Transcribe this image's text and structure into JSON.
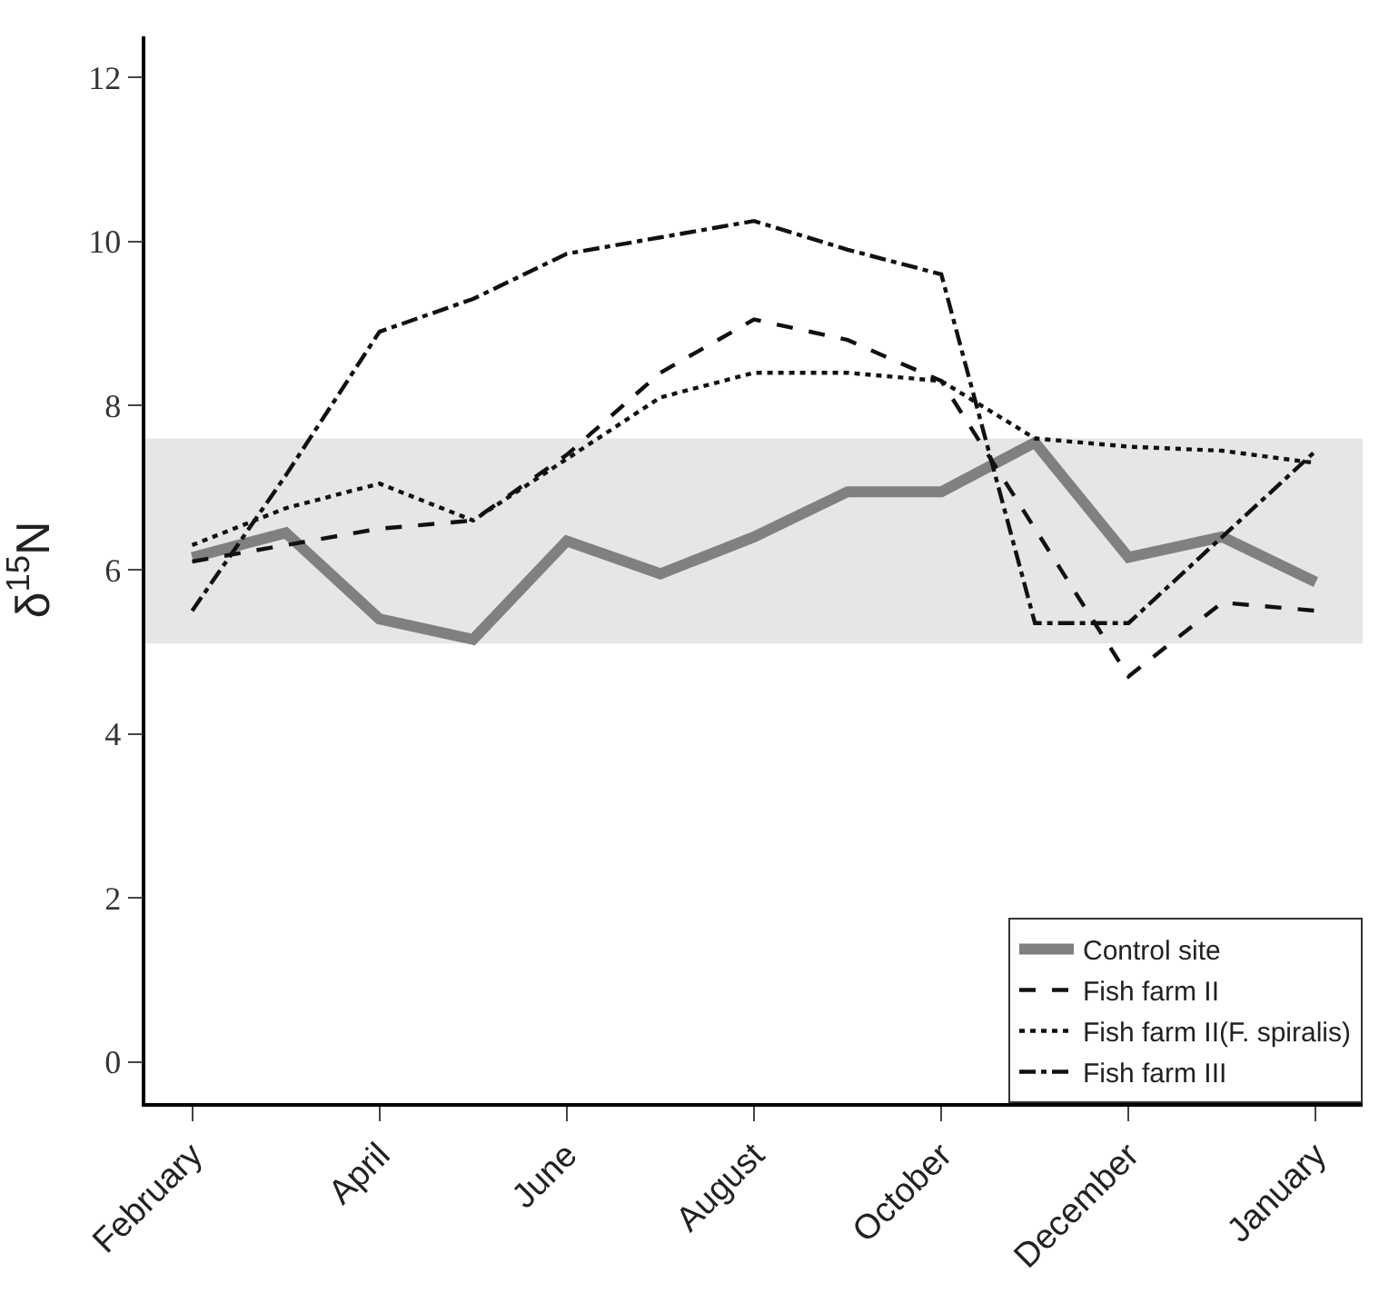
{
  "chart_data": {
    "type": "line",
    "ylabel": "δ$^{15}$N",
    "categories": [
      "February",
      null,
      "April",
      null,
      "June",
      null,
      "August",
      null,
      "October",
      null,
      "December",
      null,
      "January"
    ],
    "series": [
      {
        "name": "Control site",
        "color": "#808080",
        "line_style": "solid",
        "values": [
          6.15,
          6.45,
          5.4,
          5.15,
          6.35,
          5.95,
          6.4,
          6.95,
          6.95,
          7.55,
          6.15,
          6.4,
          5.85
        ]
      },
      {
        "name": "Fish farm II",
        "color": "#111111",
        "line_style": "dashed",
        "values": [
          6.1,
          6.3,
          6.5,
          6.6,
          7.4,
          8.4,
          9.05,
          8.8,
          8.3,
          6.5,
          4.7,
          5.6,
          5.5
        ]
      },
      {
        "name": "Fish farm II(F. spiralis)",
        "color": "#111111",
        "line_style": "dotted",
        "values": [
          6.3,
          6.75,
          7.05,
          6.6,
          7.35,
          8.1,
          8.4,
          8.4,
          8.3,
          7.6,
          7.5,
          7.45,
          7.3
        ]
      },
      {
        "name": "Fish farm III",
        "color": "#111111",
        "line_style": "dashdot",
        "values": [
          5.5,
          7.15,
          8.9,
          9.3,
          9.85,
          10.05,
          10.25,
          9.9,
          9.6,
          5.35,
          5.35,
          6.4,
          7.45
        ]
      }
    ],
    "bands": [
      {
        "axis": "y",
        "from": 5.1,
        "to": 7.6,
        "color": "#e6e6e6"
      }
    ],
    "ylim": [
      -0.5,
      12.5
    ],
    "yticks": [
      0,
      2,
      4,
      6,
      8,
      10,
      12
    ],
    "legend": "bottom right",
    "grid": false,
    "marker": "none"
  }
}
